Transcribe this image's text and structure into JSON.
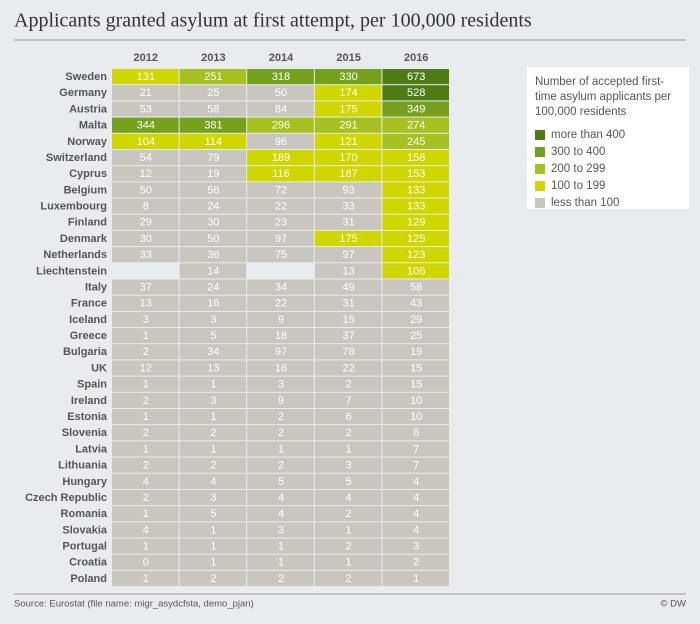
{
  "chart_data": {
    "type": "heatmap",
    "title": "Applicants granted asylum at first attempt, per 100,000 residents",
    "columns": [
      "2012",
      "2013",
      "2014",
      "2015",
      "2016"
    ],
    "rows": [
      {
        "name": "Sweden",
        "values": [
          131,
          251,
          318,
          330,
          673
        ]
      },
      {
        "name": "Germany",
        "values": [
          21,
          25,
          50,
          174,
          528
        ]
      },
      {
        "name": "Austria",
        "values": [
          53,
          58,
          84,
          175,
          349
        ]
      },
      {
        "name": "Malta",
        "values": [
          344,
          381,
          296,
          291,
          274
        ]
      },
      {
        "name": "Norway",
        "values": [
          104,
          114,
          96,
          121,
          245
        ]
      },
      {
        "name": "Switzerland",
        "values": [
          54,
          79,
          189,
          170,
          158
        ]
      },
      {
        "name": "Cyprus",
        "values": [
          12,
          19,
          116,
          187,
          153
        ]
      },
      {
        "name": "Belgium",
        "values": [
          50,
          56,
          72,
          93,
          133
        ]
      },
      {
        "name": "Luxembourg",
        "values": [
          8,
          24,
          22,
          33,
          133
        ]
      },
      {
        "name": "Finland",
        "values": [
          29,
          30,
          23,
          31,
          129
        ]
      },
      {
        "name": "Denmark",
        "values": [
          30,
          50,
          97,
          175,
          125
        ]
      },
      {
        "name": "Netherlands",
        "values": [
          33,
          36,
          75,
          97,
          123
        ]
      },
      {
        "name": "Liechtenstein",
        "values": [
          null,
          14,
          null,
          13,
          106
        ]
      },
      {
        "name": "Italy",
        "values": [
          37,
          24,
          34,
          49,
          58
        ]
      },
      {
        "name": "France",
        "values": [
          13,
          16,
          22,
          31,
          43
        ]
      },
      {
        "name": "Iceland",
        "values": [
          3,
          3,
          9,
          15,
          29
        ]
      },
      {
        "name": "Greece",
        "values": [
          1,
          5,
          18,
          37,
          25
        ]
      },
      {
        "name": "Bulgaria",
        "values": [
          2,
          34,
          97,
          78,
          19
        ]
      },
      {
        "name": "UK",
        "values": [
          12,
          13,
          16,
          22,
          15
        ]
      },
      {
        "name": "Spain",
        "values": [
          1,
          1,
          3,
          2,
          15
        ]
      },
      {
        "name": "Ireland",
        "values": [
          2,
          3,
          9,
          7,
          10
        ]
      },
      {
        "name": "Estonia",
        "values": [
          1,
          1,
          2,
          6,
          10
        ]
      },
      {
        "name": "Slovenia",
        "values": [
          2,
          2,
          2,
          2,
          8
        ]
      },
      {
        "name": "Latvia",
        "values": [
          1,
          1,
          1,
          1,
          7
        ]
      },
      {
        "name": "Lithuania",
        "values": [
          2,
          2,
          2,
          3,
          7
        ]
      },
      {
        "name": "Hungary",
        "values": [
          4,
          4,
          5,
          5,
          4
        ]
      },
      {
        "name": "Czech Republic",
        "values": [
          2,
          3,
          4,
          4,
          4
        ]
      },
      {
        "name": "Romania",
        "values": [
          1,
          5,
          4,
          2,
          4
        ]
      },
      {
        "name": "Slovakia",
        "values": [
          4,
          1,
          3,
          1,
          4
        ]
      },
      {
        "name": "Portugal",
        "values": [
          1,
          1,
          1,
          2,
          3
        ]
      },
      {
        "name": "Croatia",
        "values": [
          0,
          1,
          1,
          1,
          2
        ]
      },
      {
        "name": "Poland",
        "values": [
          1,
          2,
          2,
          2,
          1
        ]
      }
    ],
    "legend": {
      "title": "Number of accepted first-time asylum applicants per 100,000 residents",
      "items": [
        {
          "label": "more than 400",
          "color": "#4f7b14",
          "min": 400
        },
        {
          "label": "300 to 400",
          "color": "#74a01c",
          "min": 300
        },
        {
          "label": "200 to 299",
          "color": "#a6c020",
          "min": 200
        },
        {
          "label": "100 to 199",
          "color": "#cfd600",
          "min": 100
        },
        {
          "label": "less than 100",
          "color": "#c9c6c0",
          "min": null
        }
      ]
    },
    "source": "Source: Eurostat (file name: migr_asydcfsta, demo_pjan)",
    "credit": "© DW"
  }
}
